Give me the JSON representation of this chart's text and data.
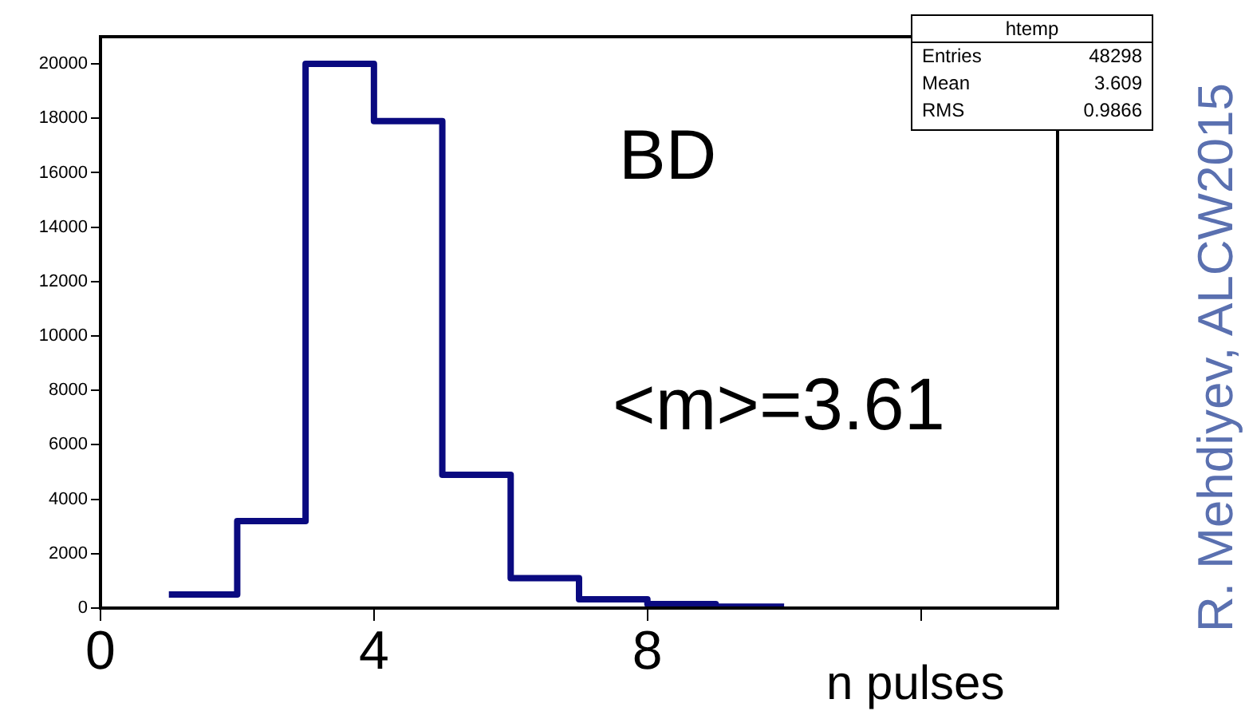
{
  "chart_data": {
    "type": "histogram",
    "xlabel": "n pulses",
    "bins": [
      1,
      2,
      3,
      4,
      5,
      6,
      7,
      8,
      9,
      10
    ],
    "values": [
      500,
      3200,
      20000,
      17900,
      4900,
      1100,
      320,
      150,
      50
    ],
    "color": "#0a0a80",
    "xlim": [
      0,
      14
    ],
    "xticks": [
      0,
      4,
      8,
      {
        "value": 12,
        "label": null
      }
    ],
    "ylim": [
      0,
      21000
    ],
    "yticks": [
      0,
      2000,
      4000,
      6000,
      8000,
      10000,
      12000,
      14000,
      16000,
      18000,
      20000
    ],
    "grid": false,
    "legend": false,
    "annotations": [
      "BD",
      "<m>=3.61",
      "htemp",
      "Entries",
      "48298",
      "Mean",
      "3.609",
      "RMS",
      "0.9866",
      "R. Mehdiyev, ALCW2015"
    ]
  }
}
